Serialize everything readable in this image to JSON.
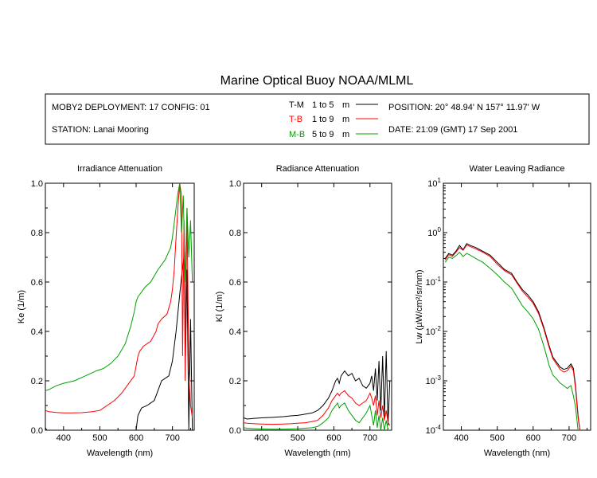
{
  "title": "Marine Optical Buoy NOAA/MLML",
  "info_box": {
    "deployment": "MOBY2 DEPLOYMENT: 17 CONFIG: 01",
    "station": "STATION: Lanai Mooring",
    "position": "POSITION: 20° 48.94' N   157° 11.97' W",
    "date": "DATE: 21:09 (GMT) 17 Sep 2001",
    "legend": [
      {
        "code": "T-M",
        "range": "1 to 5",
        "unit": "m",
        "color": "#000000"
      },
      {
        "code": "T-B",
        "range": "1 to 9",
        "unit": "m",
        "color": "#ff0000"
      },
      {
        "code": "M-B",
        "range": "5 to 9",
        "unit": "m",
        "color": "#00a000"
      }
    ]
  },
  "chart_data": [
    {
      "type": "line",
      "title": "Irradiance Attenuation",
      "xlabel": "Wavelength (nm)",
      "ylabel": "Ke  (1/m)",
      "xlim": [
        350,
        760
      ],
      "ylim": [
        0,
        1.0
      ],
      "xticks": [
        400,
        500,
        600,
        700
      ],
      "yticks": [
        0.0,
        0.2,
        0.4,
        0.6,
        0.8,
        1.0
      ],
      "ytick_labels": [
        "0.0",
        "0.2",
        "0.4",
        "0.6",
        "0.8",
        "1.0"
      ],
      "series": [
        {
          "name": "T-M",
          "color": "#000000",
          "x": [
            350,
            354,
            600,
            605,
            615,
            630,
            650,
            660,
            670,
            690,
            700,
            710,
            720,
            725,
            730,
            733,
            736,
            740,
            745,
            750,
            755
          ],
          "y": [
            0.01,
            0.0,
            0.0,
            0.06,
            0.09,
            0.1,
            0.12,
            0.16,
            0.2,
            0.22,
            0.28,
            0.4,
            0.55,
            0.62,
            0.68,
            0.72,
            0.3,
            0.65,
            0.0,
            0.45,
            0.0
          ]
        },
        {
          "name": "T-B",
          "color": "#ff0000",
          "x": [
            350,
            360,
            380,
            400,
            420,
            450,
            480,
            500,
            520,
            540,
            560,
            580,
            595,
            600,
            605,
            610,
            615,
            620,
            640,
            655,
            660,
            670,
            685,
            695,
            700,
            705,
            710,
            715,
            720,
            725,
            728,
            732,
            735,
            740,
            745,
            750,
            755
          ],
          "y": [
            0.08,
            0.075,
            0.072,
            0.07,
            0.07,
            0.071,
            0.075,
            0.08,
            0.1,
            0.12,
            0.15,
            0.19,
            0.22,
            0.26,
            0.3,
            0.32,
            0.33,
            0.34,
            0.36,
            0.4,
            0.43,
            0.45,
            0.47,
            0.52,
            0.57,
            0.65,
            0.78,
            0.9,
            1.0,
            0.95,
            0.3,
            0.85,
            0.2,
            0.9,
            0.25,
            0.1,
            0.05
          ]
        },
        {
          "name": "M-B",
          "color": "#00a000",
          "x": [
            350,
            360,
            380,
            400,
            430,
            460,
            490,
            510,
            530,
            550,
            570,
            585,
            595,
            600,
            605,
            610,
            615,
            620,
            625,
            640,
            660,
            680,
            695,
            700,
            705,
            710,
            715,
            720,
            725,
            730,
            735,
            740,
            745,
            750,
            755
          ],
          "y": [
            0.16,
            0.165,
            0.18,
            0.19,
            0.2,
            0.22,
            0.24,
            0.25,
            0.27,
            0.3,
            0.35,
            0.42,
            0.48,
            0.52,
            0.54,
            0.55,
            0.56,
            0.57,
            0.58,
            0.6,
            0.65,
            0.69,
            0.74,
            0.78,
            0.84,
            0.9,
            0.96,
            1.0,
            0.8,
            0.95,
            0.6,
            0.9,
            0.7,
            0.85,
            0.6
          ]
        }
      ]
    },
    {
      "type": "line",
      "title": "Radiance Attenuation",
      "xlabel": "Wavelength (nm)",
      "ylabel": "Kl  (1/m)",
      "xlim": [
        350,
        760
      ],
      "ylim": [
        0,
        1.0
      ],
      "xticks": [
        400,
        500,
        600,
        700
      ],
      "yticks": [
        0.0,
        0.2,
        0.4,
        0.6,
        0.8,
        1.0
      ],
      "ytick_labels": [
        "0.0",
        "0.2",
        "0.4",
        "0.6",
        "0.8",
        "1.0"
      ],
      "series": [
        {
          "name": "T-M",
          "color": "#000000",
          "x": [
            350,
            360,
            380,
            400,
            430,
            460,
            480,
            500,
            520,
            540,
            555,
            570,
            585,
            595,
            600,
            605,
            610,
            615,
            620,
            630,
            640,
            650,
            660,
            670,
            680,
            690,
            700,
            705,
            710,
            715,
            720,
            725,
            730,
            735,
            740,
            745,
            750,
            755
          ],
          "y": [
            0.05,
            0.045,
            0.048,
            0.05,
            0.052,
            0.055,
            0.058,
            0.06,
            0.065,
            0.07,
            0.08,
            0.1,
            0.13,
            0.16,
            0.18,
            0.2,
            0.21,
            0.19,
            0.22,
            0.24,
            0.22,
            0.23,
            0.2,
            0.21,
            0.18,
            0.17,
            0.19,
            0.22,
            0.16,
            0.25,
            0.12,
            0.28,
            0.08,
            0.3,
            0.05,
            0.32,
            0.02,
            0.2
          ]
        },
        {
          "name": "T-B",
          "color": "#ff0000",
          "x": [
            350,
            360,
            380,
            400,
            430,
            460,
            480,
            500,
            520,
            540,
            555,
            570,
            585,
            595,
            600,
            605,
            610,
            615,
            620,
            630,
            640,
            650,
            660,
            670,
            680,
            690,
            700,
            705,
            710,
            715,
            720,
            725,
            730,
            735,
            740,
            745,
            750,
            755
          ],
          "y": [
            0.03,
            0.028,
            0.026,
            0.025,
            0.024,
            0.025,
            0.026,
            0.028,
            0.03,
            0.035,
            0.04,
            0.06,
            0.09,
            0.12,
            0.13,
            0.14,
            0.15,
            0.14,
            0.15,
            0.16,
            0.14,
            0.13,
            0.11,
            0.1,
            0.11,
            0.12,
            0.15,
            0.13,
            0.1,
            0.14,
            0.06,
            0.12,
            0.05,
            0.1,
            0.04,
            0.08,
            0.03,
            0.02
          ]
        },
        {
          "name": "M-B",
          "color": "#00a000",
          "x": [
            350,
            360,
            380,
            400,
            430,
            460,
            480,
            500,
            520,
            540,
            555,
            570,
            585,
            595,
            600,
            605,
            610,
            615,
            620,
            630,
            640,
            650,
            660,
            670,
            680,
            690,
            700,
            705,
            710,
            715,
            720,
            725,
            730,
            735,
            740,
            745,
            750,
            755
          ],
          "y": [
            0.01,
            0.008,
            0.006,
            0.005,
            0.004,
            0.004,
            0.005,
            0.006,
            0.008,
            0.01,
            0.015,
            0.03,
            0.05,
            0.08,
            0.09,
            0.1,
            0.11,
            0.09,
            0.1,
            0.11,
            0.08,
            0.06,
            0.04,
            0.03,
            0.05,
            0.07,
            0.1,
            0.06,
            0.02,
            0.08,
            0.01,
            0.06,
            0.0,
            0.05,
            0.0,
            0.04,
            0.0,
            0.0
          ]
        }
      ]
    },
    {
      "type": "line",
      "title": "Water Leaving Radiance",
      "xlabel": "Wavelength (nm)",
      "ylabel": "Lw  (µW/cm²/sr/nm)",
      "yscale": "log",
      "xlim": [
        350,
        760
      ],
      "ylim": [
        0.0001,
        10
      ],
      "xticks": [
        400,
        500,
        600,
        700
      ],
      "yticks": [
        0.0001,
        0.001,
        0.01,
        0.1,
        1,
        10
      ],
      "ytick_labels": [
        {
          "base": "10",
          "exp": "-4"
        },
        {
          "base": "10",
          "exp": "-3"
        },
        {
          "base": "10",
          "exp": "-2"
        },
        {
          "base": "10",
          "exp": "-1"
        },
        {
          "base": "10",
          "exp": "0"
        },
        {
          "base": "10",
          "exp": "1"
        }
      ],
      "series": [
        {
          "name": "T-M",
          "color": "#000000",
          "x": [
            355,
            365,
            375,
            385,
            395,
            405,
            415,
            425,
            440,
            460,
            480,
            500,
            520,
            540,
            555,
            570,
            585,
            600,
            615,
            630,
            645,
            655,
            665,
            675,
            685,
            695,
            705,
            712,
            718,
            725,
            730
          ],
          "y": [
            0.3,
            0.38,
            0.35,
            0.42,
            0.55,
            0.45,
            0.6,
            0.55,
            0.5,
            0.42,
            0.35,
            0.25,
            0.18,
            0.15,
            0.1,
            0.07,
            0.055,
            0.04,
            0.025,
            0.012,
            0.005,
            0.003,
            0.0024,
            0.0019,
            0.0017,
            0.0018,
            0.0022,
            0.0018,
            0.0008,
            0.0002,
            0.0001
          ]
        },
        {
          "name": "T-B",
          "color": "#ff0000",
          "x": [
            355,
            365,
            375,
            385,
            395,
            405,
            415,
            425,
            440,
            460,
            480,
            500,
            520,
            540,
            555,
            570,
            585,
            600,
            615,
            630,
            645,
            655,
            665,
            675,
            685,
            695,
            705,
            712,
            718,
            725,
            730
          ],
          "y": [
            0.28,
            0.36,
            0.33,
            0.4,
            0.5,
            0.44,
            0.56,
            0.52,
            0.47,
            0.4,
            0.33,
            0.23,
            0.17,
            0.14,
            0.095,
            0.065,
            0.05,
            0.037,
            0.023,
            0.011,
            0.0046,
            0.0028,
            0.0022,
            0.0017,
            0.0015,
            0.0016,
            0.002,
            0.0016,
            0.0007,
            0.00018,
            0.0001
          ]
        },
        {
          "name": "M-B",
          "color": "#00a000",
          "x": [
            355,
            365,
            375,
            385,
            395,
            405,
            415,
            425,
            440,
            460,
            480,
            500,
            520,
            540,
            555,
            570,
            585,
            600,
            615,
            630,
            645,
            655,
            665,
            675,
            685,
            695,
            705,
            712,
            718,
            725,
            730
          ],
          "y": [
            0.25,
            0.32,
            0.3,
            0.34,
            0.4,
            0.33,
            0.38,
            0.35,
            0.3,
            0.25,
            0.19,
            0.14,
            0.1,
            0.075,
            0.05,
            0.033,
            0.025,
            0.018,
            0.011,
            0.005,
            0.002,
            0.0013,
            0.0011,
            0.0009,
            0.0008,
            0.0007,
            0.0008,
            0.0005,
            0.0003,
            0.0001,
            0.0001
          ]
        }
      ]
    }
  ]
}
